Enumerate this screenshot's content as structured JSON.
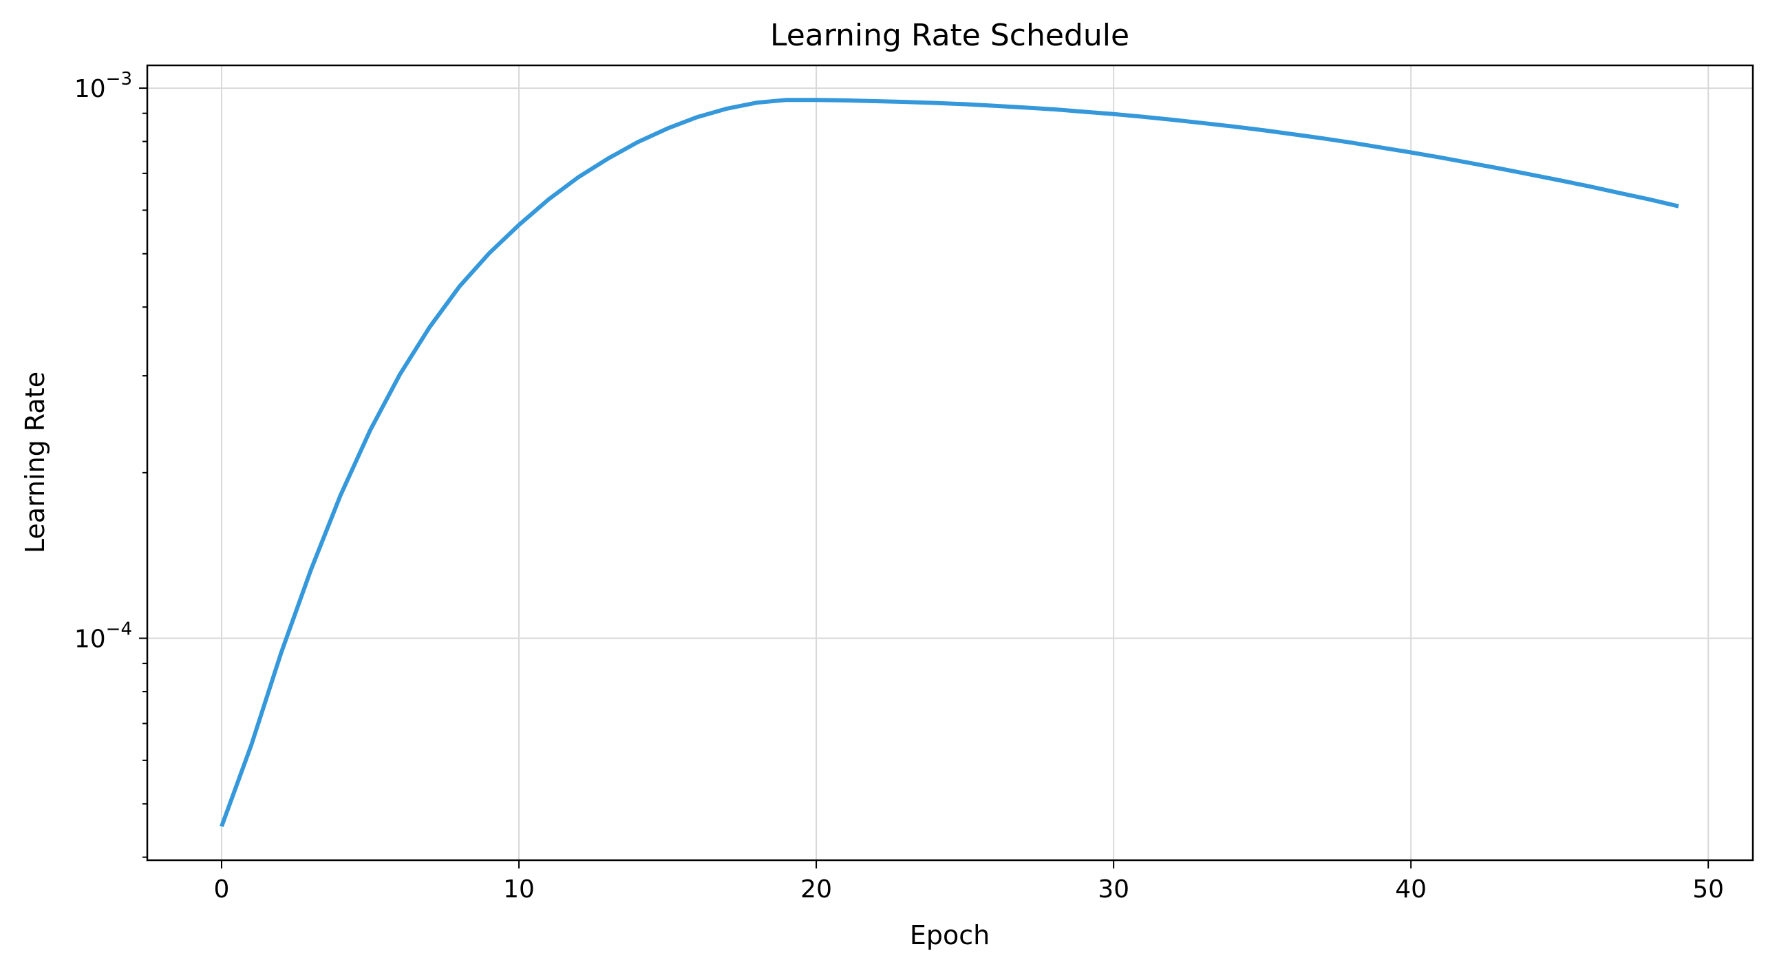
{
  "chart_data": {
    "type": "line",
    "title": "Learning Rate Schedule",
    "xlabel": "Epoch",
    "ylabel": "Learning Rate",
    "yscale": "log",
    "xlim": [
      -2.5,
      51.5
    ],
    "ylim": [
      3.95e-05,
      0.0011
    ],
    "grid": true,
    "x_ticks": [
      {
        "value": 0,
        "label": "0"
      },
      {
        "value": 10,
        "label": "10"
      },
      {
        "value": 20,
        "label": "20"
      },
      {
        "value": 30,
        "label": "30"
      },
      {
        "value": 40,
        "label": "40"
      },
      {
        "value": 50,
        "label": "50"
      }
    ],
    "y_ticks": [
      {
        "value": 0.0001,
        "base": "10",
        "exponent": "−4"
      },
      {
        "value": 0.001,
        "base": "10",
        "exponent": "−3"
      }
    ],
    "series": [
      {
        "name": "Learning Rate",
        "color": "#3498db",
        "x": [
          0,
          1,
          2,
          3,
          4,
          5,
          6,
          7,
          8,
          9,
          10,
          11,
          12,
          13,
          14,
          15,
          16,
          17,
          18,
          19,
          20,
          21,
          22,
          23,
          24,
          25,
          26,
          27,
          28,
          29,
          30,
          31,
          32,
          33,
          34,
          35,
          36,
          37,
          38,
          39,
          40,
          41,
          42,
          43,
          44,
          45,
          46,
          47,
          48,
          49
        ],
        "values": [
          4.55e-05,
          6.4e-05,
          9.4e-05,
          0.000133,
          0.000182,
          0.000239,
          0.000302,
          0.000368,
          0.000436,
          0.000501,
          0.000564,
          0.000628,
          0.000689,
          0.000745,
          0.000798,
          0.000845,
          0.000886,
          0.000918,
          0.000941,
          0.000952,
          0.000952,
          0.00095,
          0.000947,
          0.000944,
          0.00094,
          0.000935,
          0.000929,
          0.000922,
          0.000915,
          0.000906,
          0.000897,
          0.000887,
          0.000876,
          0.000864,
          0.000852,
          0.000839,
          0.000825,
          0.000811,
          0.000796,
          0.00078,
          0.000764,
          0.000748,
          0.000731,
          0.000714,
          0.000697,
          0.00068,
          0.000663,
          0.000645,
          0.000628,
          0.00061
        ]
      }
    ]
  }
}
